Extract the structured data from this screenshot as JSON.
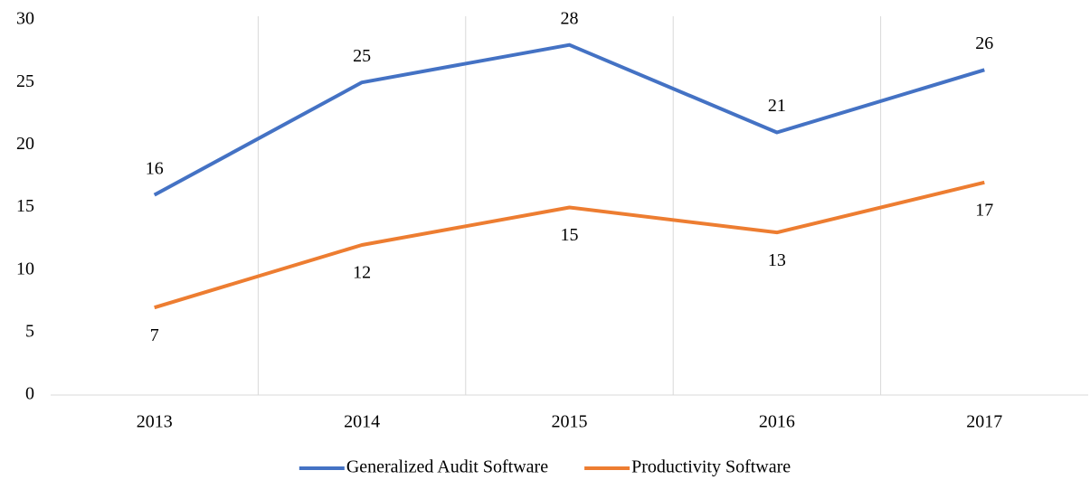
{
  "chart_data": {
    "type": "line",
    "categories": [
      "2013",
      "2014",
      "2015",
      "2016",
      "2017"
    ],
    "series": [
      {
        "name": "Generalized Audit Software",
        "color": "#4472c4",
        "values": [
          16,
          25,
          28,
          21,
          26
        ]
      },
      {
        "name": "Productivity Software",
        "color": "#ed7d31",
        "values": [
          7,
          12,
          15,
          13,
          17
        ]
      }
    ],
    "ylim": [
      0,
      30
    ],
    "yticks": [
      0,
      5,
      10,
      15,
      20,
      25,
      30
    ],
    "grid": true,
    "legend": "bottom"
  }
}
